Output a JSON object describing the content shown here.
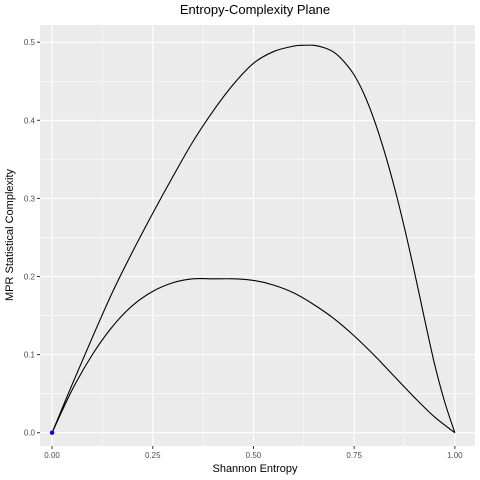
{
  "chart_data": {
    "type": "line",
    "title": "Entropy-Complexity Plane",
    "xlabel": "Shannon Entropy",
    "ylabel": "MPR Statistical Complexity",
    "xlim": [
      -0.03,
      1.05
    ],
    "ylim": [
      -0.017,
      0.522
    ],
    "x_ticks": [
      "0.00",
      "0.25",
      "0.50",
      "0.75",
      "1.00"
    ],
    "x_tick_values": [
      0,
      0.25,
      0.5,
      0.75,
      1.0
    ],
    "y_ticks": [
      "0.0",
      "0.1",
      "0.2",
      "0.3",
      "0.4",
      "0.5"
    ],
    "y_tick_values": [
      0,
      0.1,
      0.2,
      0.3,
      0.4,
      0.5
    ],
    "grid": true,
    "legend": "none",
    "colors": {
      "panel": "#ebebeb",
      "grid": "#ffffff",
      "line": "#000000",
      "point": "#0000ff"
    },
    "series": [
      {
        "x": [
          0,
          0.05,
          0.1,
          0.15,
          0.2,
          0.25,
          0.3,
          0.35,
          0.4,
          0.45,
          0.5,
          0.55,
          0.6,
          0.65,
          0.7,
          0.75,
          0.8,
          0.85,
          0.9,
          0.95,
          1.0
        ],
        "y": [
          0,
          0.055,
          0.1,
          0.136,
          0.163,
          0.181,
          0.192,
          0.197,
          0.197,
          0.197,
          0.195,
          0.189,
          0.179,
          0.164,
          0.146,
          0.124,
          0.099,
          0.072,
          0.045,
          0.02,
          0
        ]
      },
      {
        "x": [
          0,
          0.05,
          0.1,
          0.15,
          0.2,
          0.25,
          0.3,
          0.35,
          0.4,
          0.45,
          0.5,
          0.55,
          0.6,
          0.625,
          0.65,
          0.675,
          0.7,
          0.725,
          0.75,
          0.775,
          0.8,
          0.825,
          0.85,
          0.875,
          0.9,
          0.925,
          0.95,
          0.975,
          1.0
        ],
        "y": [
          0,
          0.062,
          0.122,
          0.18,
          0.232,
          0.281,
          0.328,
          0.373,
          0.412,
          0.446,
          0.473,
          0.488,
          0.495,
          0.496,
          0.496,
          0.493,
          0.487,
          0.475,
          0.458,
          0.433,
          0.4,
          0.36,
          0.314,
          0.262,
          0.205,
          0.145,
          0.087,
          0.039,
          0
        ]
      }
    ],
    "points": [
      {
        "x": 0,
        "y": 0
      }
    ]
  }
}
